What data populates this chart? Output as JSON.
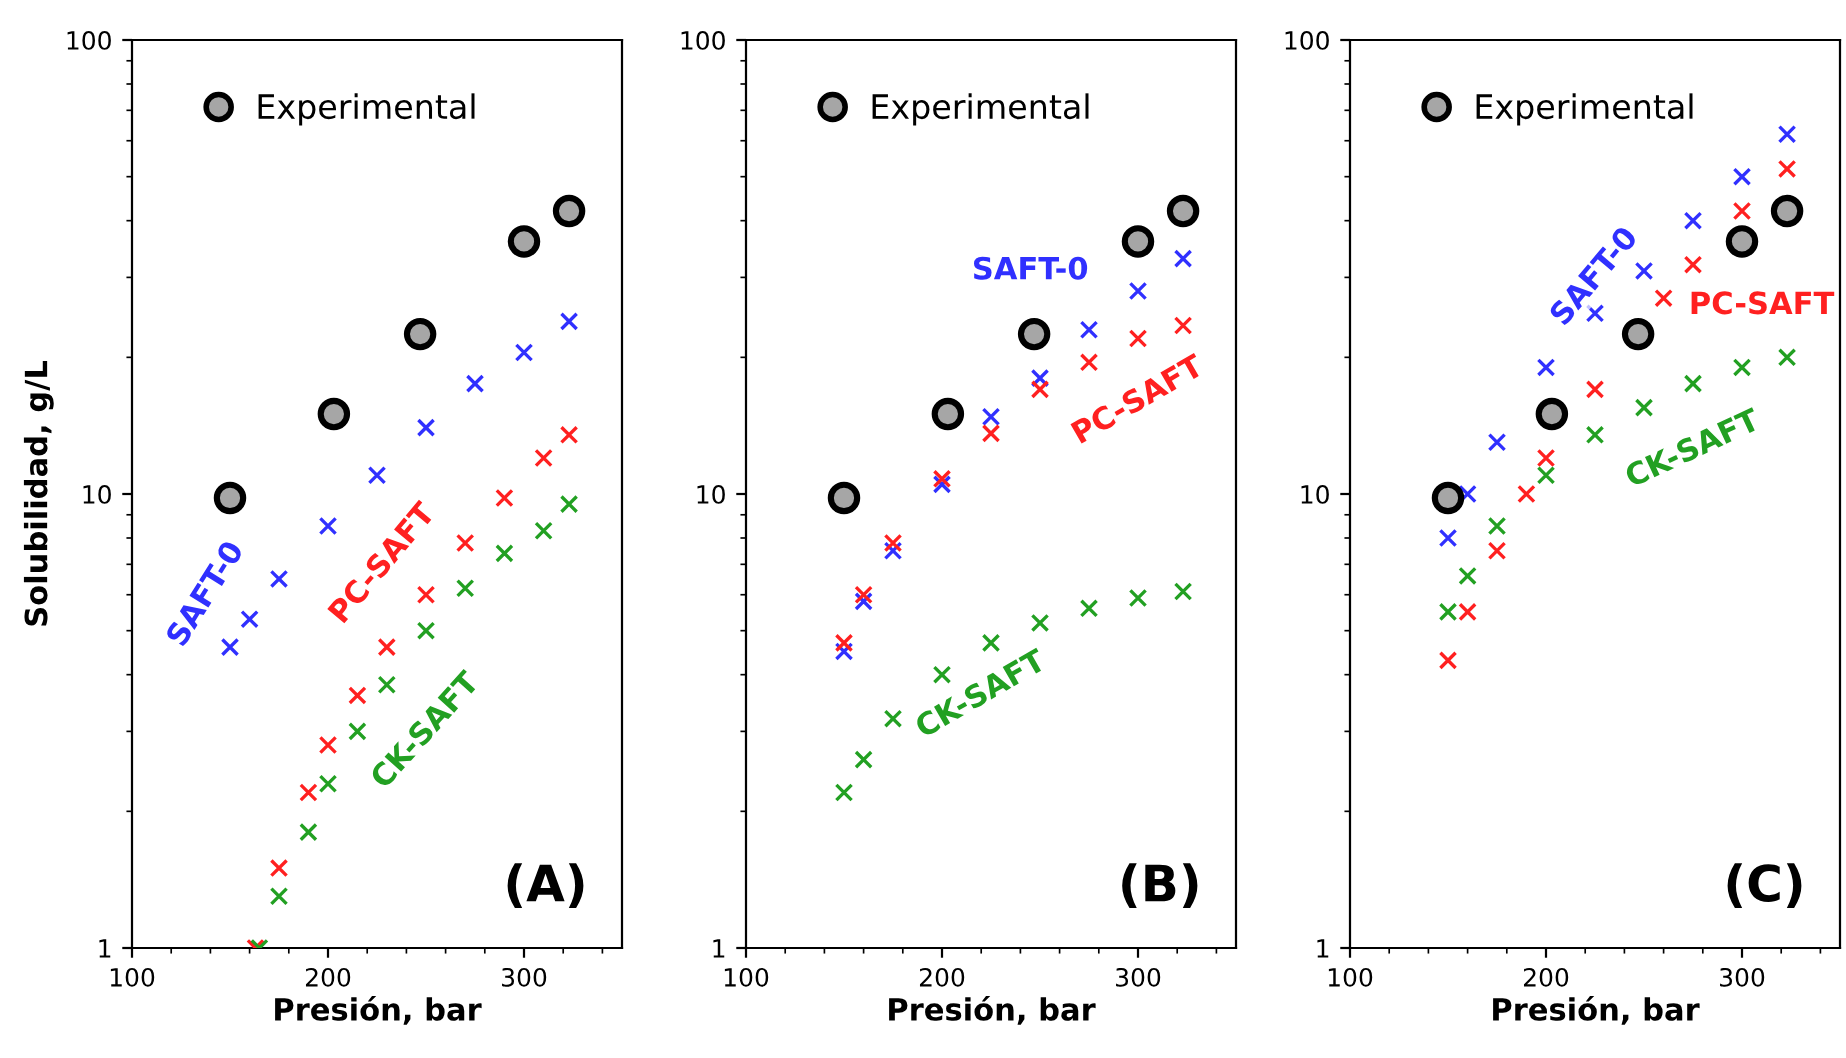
{
  "chart_data": [
    {
      "type": "scatter",
      "ylabel": "Solubilidad, g/L",
      "xlabel": "Presión, bar",
      "annotations": [
        "(A)"
      ],
      "log": "y",
      "xlim": [
        100,
        350
      ],
      "xticks": [
        100,
        200,
        300
      ],
      "ylim": [
        1,
        100
      ],
      "yticks": [
        1,
        10,
        100
      ],
      "grid": false,
      "legend": "top left",
      "series": [
        {
          "name": "Experimental",
          "color": "#a6a6a6",
          "marker": "circle",
          "x": [
            150,
            203,
            247,
            300,
            323
          ],
          "values": [
            9.8,
            15,
            22.5,
            36,
            42
          ]
        },
        {
          "name": "SAFT-0",
          "color": "#3030ff",
          "marker": "cross",
          "x": [
            150,
            160,
            175,
            200,
            225,
            250,
            275,
            300,
            323
          ],
          "values": [
            4.6,
            5.3,
            6.5,
            8.5,
            11,
            14,
            17.5,
            20.5,
            24
          ]
        },
        {
          "name": "PC-SAFT",
          "color": "#ff2020",
          "marker": "cross",
          "x": [
            163,
            175,
            190,
            200,
            215,
            230,
            250,
            270,
            290,
            310,
            323
          ],
          "values": [
            1.0,
            1.5,
            2.2,
            2.8,
            3.6,
            4.6,
            6,
            7.8,
            9.8,
            12,
            13.5
          ]
        },
        {
          "name": "CK-SAFT",
          "color": "#22a022",
          "marker": "cross",
          "x": [
            165,
            175,
            190,
            200,
            215,
            230,
            250,
            270,
            290,
            310,
            323
          ],
          "values": [
            1.0,
            1.3,
            1.8,
            2.3,
            3,
            3.8,
            5,
            6.2,
            7.4,
            8.3,
            9.5
          ]
        }
      ]
    },
    {
      "type": "scatter",
      "xlabel": "Presión, bar",
      "annotations": [
        "(B)"
      ],
      "log": "y",
      "xlim": [
        100,
        350
      ],
      "xticks": [
        100,
        200,
        300
      ],
      "ylim": [
        1,
        100
      ],
      "yticks": [
        1,
        10,
        100
      ],
      "grid": false,
      "legend": "top left",
      "series": [
        {
          "name": "Experimental",
          "color": "#a6a6a6",
          "marker": "circle",
          "x": [
            150,
            203,
            247,
            300,
            323
          ],
          "values": [
            9.8,
            15,
            22.5,
            36,
            42
          ]
        },
        {
          "name": "SAFT-0",
          "color": "#3030ff",
          "marker": "cross",
          "x": [
            150,
            160,
            175,
            200,
            225,
            250,
            275,
            300,
            323
          ],
          "values": [
            4.5,
            5.8,
            7.5,
            10.5,
            14.8,
            18,
            23,
            28,
            33
          ]
        },
        {
          "name": "PC-SAFT",
          "color": "#ff2020",
          "marker": "cross",
          "x": [
            150,
            160,
            175,
            200,
            225,
            250,
            275,
            300,
            323
          ],
          "values": [
            4.7,
            6,
            7.8,
            10.8,
            13.6,
            17,
            19.5,
            22,
            23.5
          ]
        },
        {
          "name": "CK-SAFT",
          "color": "#22a022",
          "marker": "cross",
          "x": [
            150,
            160,
            175,
            200,
            225,
            250,
            275,
            300,
            323
          ],
          "values": [
            2.2,
            2.6,
            3.2,
            4.0,
            4.7,
            5.2,
            5.6,
            5.9,
            6.1
          ]
        }
      ]
    },
    {
      "type": "scatter",
      "xlabel": "Presión, bar",
      "annotations": [
        "(C)"
      ],
      "log": "y",
      "xlim": [
        100,
        350
      ],
      "xticks": [
        100,
        200,
        300
      ],
      "ylim": [
        1,
        100
      ],
      "yticks": [
        1,
        10,
        100
      ],
      "grid": false,
      "legend": "top left",
      "series": [
        {
          "name": "Experimental",
          "color": "#a6a6a6",
          "marker": "circle",
          "x": [
            150,
            203,
            247,
            300,
            323
          ],
          "values": [
            9.8,
            15,
            22.5,
            36,
            42
          ]
        },
        {
          "name": "SAFT-0",
          "color": "#3030ff",
          "marker": "cross",
          "x": [
            150,
            160,
            175,
            200,
            225,
            250,
            275,
            300,
            323
          ],
          "values": [
            8,
            10,
            13,
            19,
            25,
            31,
            40,
            50,
            62
          ]
        },
        {
          "name": "PC-SAFT",
          "color": "#ff2020",
          "marker": "cross",
          "x": [
            150,
            160,
            175,
            190,
            200,
            225,
            260,
            275,
            300,
            323
          ],
          "values": [
            4.3,
            5.5,
            7.5,
            10,
            12,
            17,
            27,
            32,
            42,
            52
          ]
        },
        {
          "name": "CK-SAFT",
          "color": "#22a022",
          "marker": "cross",
          "x": [
            150,
            160,
            175,
            200,
            225,
            250,
            275,
            300,
            323
          ],
          "values": [
            5.5,
            6.6,
            8.5,
            11,
            13.5,
            15.5,
            17.5,
            19,
            20
          ]
        }
      ]
    }
  ]
}
